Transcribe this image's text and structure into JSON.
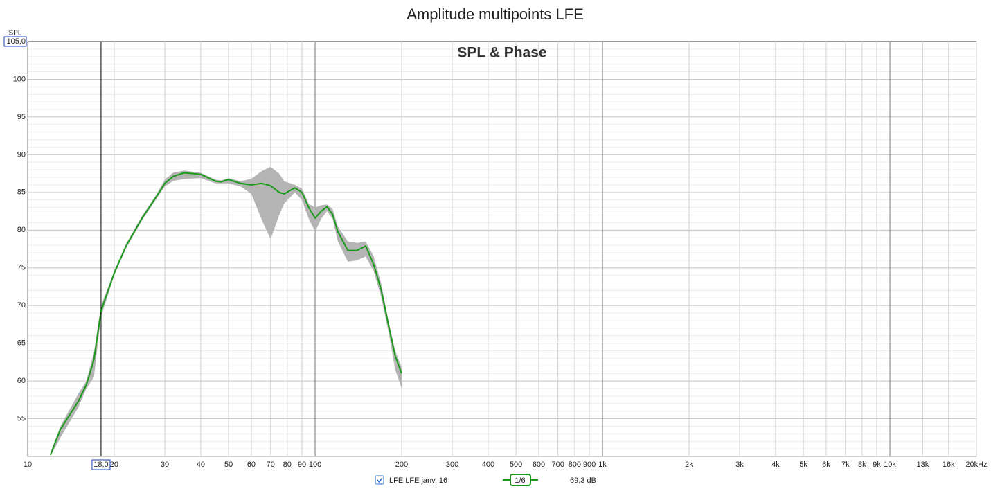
{
  "chart_data": {
    "type": "line",
    "title": "Amplitude multipoints LFE",
    "subtitle": "SPL & Phase",
    "ylabel": "SPL",
    "xscale": "log",
    "grid": true,
    "xlim": [
      10,
      20000
    ],
    "ylim": [
      50,
      105
    ],
    "yticks": [
      55,
      60,
      65,
      70,
      75,
      80,
      85,
      90,
      95,
      100,
      {
        "value": 105,
        "label": "105,0"
      }
    ],
    "xticks": [
      10,
      20,
      30,
      40,
      50,
      60,
      70,
      80,
      90,
      100,
      200,
      300,
      400,
      500,
      600,
      700,
      800,
      900,
      {
        "value": 1000,
        "label": "1k"
      },
      {
        "value": 2000,
        "label": "2k"
      },
      {
        "value": 3000,
        "label": "3k"
      },
      {
        "value": 4000,
        "label": "4k"
      },
      {
        "value": 5000,
        "label": "5k"
      },
      {
        "value": 6000,
        "label": "6k"
      },
      {
        "value": 7000,
        "label": "7k"
      },
      {
        "value": 8000,
        "label": "8k"
      },
      {
        "value": 9000,
        "label": "9k"
      },
      {
        "value": 10000,
        "label": "10k"
      },
      {
        "value": 13000,
        "label": "13k"
      },
      {
        "value": 16000,
        "label": "16k"
      },
      {
        "value": 20000,
        "label": "20kHz"
      }
    ],
    "x": [
      12,
      13,
      15,
      16,
      17,
      18,
      20,
      22,
      25,
      28,
      30,
      32,
      35,
      40,
      45,
      47,
      50,
      55,
      60,
      65,
      70,
      75,
      78,
      85,
      90,
      95,
      100,
      105,
      110,
      115,
      120,
      130,
      140,
      150,
      160,
      170,
      180,
      190,
      200
    ],
    "series": [
      {
        "name": "LFE LFE janv. 16",
        "color": "#1a9a1a",
        "values": [
          50.2,
          53.6,
          57.3,
          59.5,
          62.8,
          69.3,
          74.3,
          77.9,
          81.6,
          84.4,
          86.2,
          87.1,
          87.6,
          87.4,
          86.5,
          86.4,
          86.7,
          86.2,
          86.0,
          86.2,
          85.9,
          85.0,
          84.8,
          85.6,
          85.0,
          83.0,
          81.6,
          82.5,
          83.1,
          82.1,
          79.8,
          77.3,
          77.3,
          77.9,
          75.4,
          72.0,
          67.4,
          63.3,
          61.0
        ]
      }
    ],
    "band": {
      "color": "#b4b4b4",
      "lower": [
        50.0,
        52.5,
        56.5,
        59.0,
        60.5,
        68.5,
        74.0,
        77.6,
        81.3,
        84.1,
        85.8,
        86.5,
        86.8,
        86.9,
        86.2,
        86.2,
        86.2,
        85.8,
        84.8,
        81.5,
        78.8,
        82.0,
        83.5,
        85.0,
        84.0,
        81.5,
        79.8,
        81.5,
        82.5,
        81.5,
        78.5,
        75.8,
        76.0,
        76.5,
        74.5,
        71.0,
        66.5,
        61.5,
        59.0
      ],
      "upper": [
        50.5,
        54.0,
        58.3,
        60.0,
        63.8,
        70.0,
        74.6,
        78.2,
        81.9,
        84.7,
        86.7,
        87.6,
        87.9,
        87.6,
        86.7,
        86.6,
        86.9,
        86.5,
        86.8,
        87.8,
        88.4,
        87.5,
        86.5,
        86.0,
        85.5,
        83.5,
        83.0,
        83.3,
        83.4,
        82.8,
        80.5,
        78.5,
        78.3,
        78.5,
        76.5,
        72.8,
        68.0,
        64.0,
        61.8
      ]
    },
    "cursor": {
      "x": {
        "value": 18,
        "label": "18,0"
      },
      "y": 69.3,
      "y_label": "69,3 dB"
    },
    "smoothing": "1/6"
  }
}
